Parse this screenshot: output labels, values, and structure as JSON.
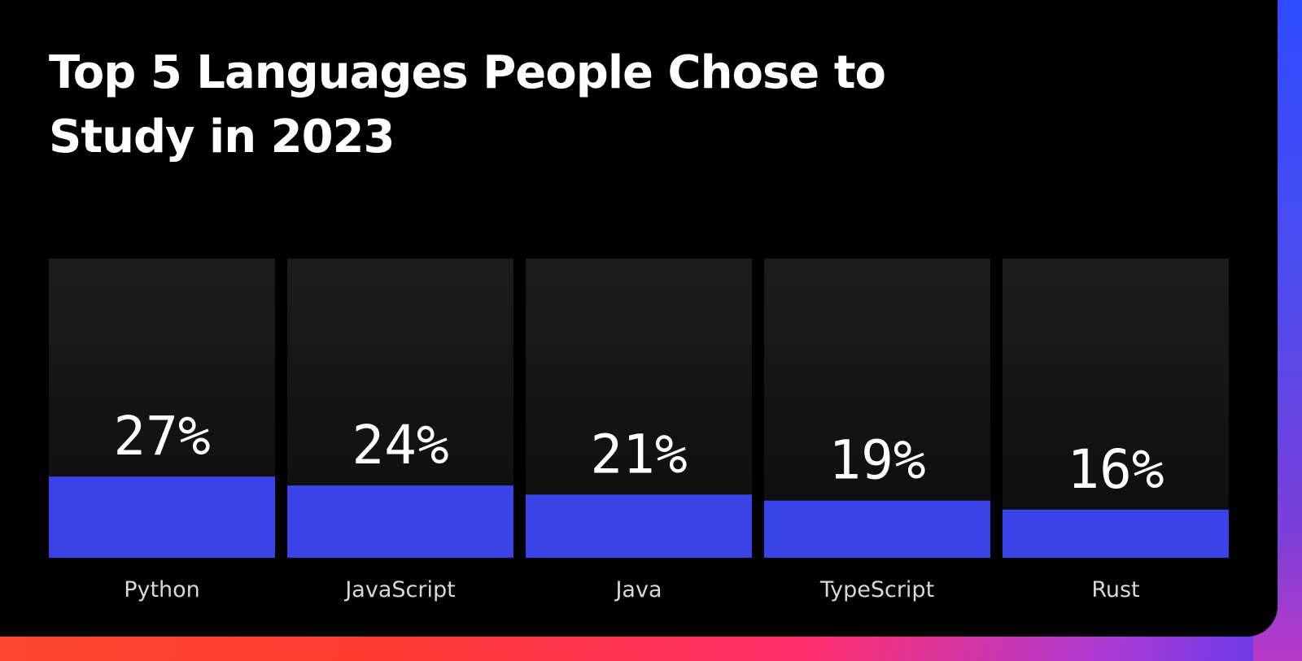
{
  "colors": {
    "bar": "#3a44e6",
    "track_top": "#1c1c1c",
    "track_bottom": "#0c0c0c",
    "card_bg": "#000000",
    "text": "#ffffff",
    "label_text": "#d8d8d8"
  },
  "chart_data": {
    "type": "bar",
    "title": "Top 5 Languages People Chose to Study in 2023",
    "categories": [
      "Python",
      "JavaScript",
      "Java",
      "TypeScript",
      "Rust"
    ],
    "values": [
      27,
      24,
      21,
      19,
      16
    ],
    "value_labels": [
      "27%",
      "24%",
      "21%",
      "19%",
      "16%"
    ],
    "ylim": [
      0,
      100
    ],
    "grid": false,
    "legend": "none"
  }
}
